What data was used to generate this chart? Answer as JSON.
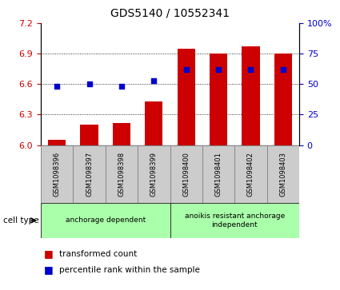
{
  "title": "GDS5140 / 10552341",
  "samples": [
    "GSM1098396",
    "GSM1098397",
    "GSM1098398",
    "GSM1098399",
    "GSM1098400",
    "GSM1098401",
    "GSM1098402",
    "GSM1098403"
  ],
  "bar_values": [
    6.05,
    6.2,
    6.22,
    6.43,
    6.95,
    6.9,
    6.97,
    6.9
  ],
  "bar_base": 6.0,
  "percentile_values": [
    48,
    50,
    48,
    53,
    62,
    62,
    62,
    62
  ],
  "ylim_left": [
    6.0,
    7.2
  ],
  "ylim_right": [
    0,
    100
  ],
  "yticks_left": [
    6.0,
    6.3,
    6.6,
    6.9,
    7.2
  ],
  "yticks_right": [
    0,
    25,
    50,
    75,
    100
  ],
  "bar_color": "#cc0000",
  "dot_color": "#0000cc",
  "grid_color": "#000000",
  "cell_types": [
    {
      "label": "anchorage dependent",
      "start": 0,
      "end": 4,
      "color": "#aaffaa"
    },
    {
      "label": "anoikis resistant anchorage\nindependent",
      "start": 4,
      "end": 8,
      "color": "#aaffaa"
    }
  ],
  "legend_bar_label": "transformed count",
  "legend_dot_label": "percentile rank within the sample",
  "cell_type_label": "cell type",
  "bg_color": "#ffffff",
  "plot_bg_color": "#ffffff",
  "tick_label_color_left": "#cc0000",
  "tick_label_color_right": "#0000cc",
  "sample_box_color": "#cccccc",
  "sample_box_edge": "#888888"
}
